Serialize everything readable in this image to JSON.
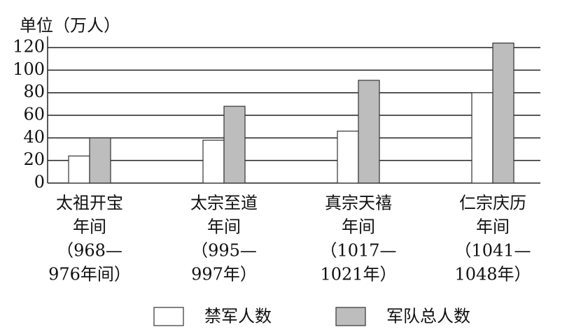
{
  "chart_data": {
    "type": "bar",
    "y_label": "单位（万人）",
    "categories": [
      [
        "太祖开宝",
        "年间",
        "（968—",
        "976年间）"
      ],
      [
        "太宗至道",
        "年间",
        "（995—",
        "997年）"
      ],
      [
        "真宗天禧",
        "年间",
        "（1017—",
        "1021年）"
      ],
      [
        "仁宗庆历",
        "年间",
        "（1041—",
        "1048年）"
      ]
    ],
    "series": [
      {
        "name": "禁军人数",
        "color": "#ffffff",
        "values": [
          24,
          38,
          46,
          80
        ]
      },
      {
        "name": "军队总人数",
        "color": "#bdbdbd",
        "values": [
          40,
          68,
          91,
          124
        ]
      }
    ],
    "ylim": [
      0,
      125
    ],
    "yticks": [
      0,
      20,
      40,
      60,
      80,
      100,
      120
    ],
    "grid": true
  }
}
